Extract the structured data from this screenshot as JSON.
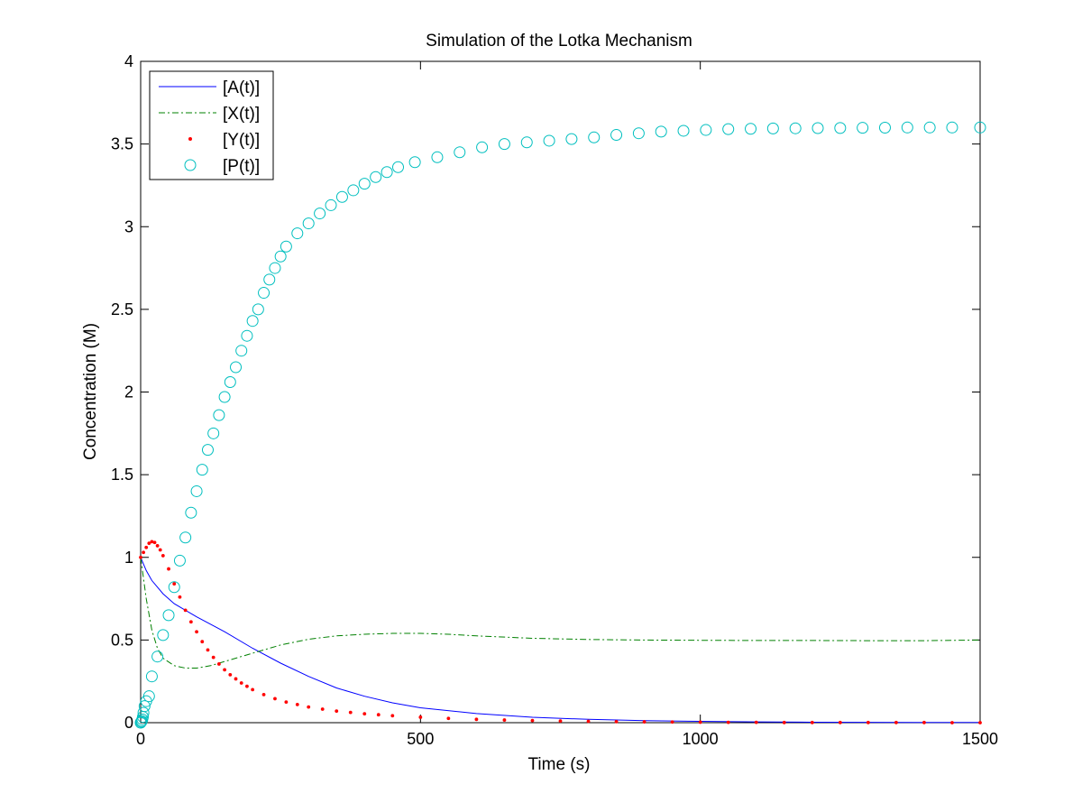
{
  "chart_data": {
    "type": "line",
    "title": "Simulation of the Lotka Mechanism",
    "xlabel": "Time (s)",
    "ylabel": "Concentration (M)",
    "xlim": [
      0,
      1500
    ],
    "ylim": [
      0,
      4
    ],
    "xticks": [
      0,
      500,
      1000,
      1500
    ],
    "yticks": [
      0,
      0.5,
      1,
      1.5,
      2,
      2.5,
      3,
      3.5,
      4
    ],
    "xtick_labels": [
      "0",
      "500",
      "1000",
      "1500"
    ],
    "ytick_labels": [
      "0",
      "0.5",
      "1",
      "1.5",
      "2",
      "2.5",
      "3",
      "3.5",
      "4"
    ],
    "grid": false,
    "legend_position": "top-left",
    "series": [
      {
        "name": "[A(t)]",
        "style": "solid-line",
        "color": "#0000ff",
        "x": [
          0,
          10,
          20,
          40,
          60,
          80,
          100,
          150,
          200,
          250,
          300,
          350,
          400,
          450,
          500,
          600,
          700,
          800,
          900,
          1000,
          1100,
          1200,
          1300,
          1400,
          1500
        ],
        "y": [
          1.0,
          0.92,
          0.86,
          0.78,
          0.72,
          0.68,
          0.64,
          0.55,
          0.45,
          0.36,
          0.28,
          0.21,
          0.16,
          0.12,
          0.09,
          0.055,
          0.033,
          0.02,
          0.012,
          0.008,
          0.005,
          0.003,
          0.002,
          0.001,
          0.001
        ]
      },
      {
        "name": "[X(t)]",
        "style": "dash-dot-line",
        "color": "#008000",
        "x": [
          0,
          10,
          20,
          30,
          40,
          60,
          80,
          100,
          125,
          150,
          200,
          250,
          300,
          350,
          400,
          450,
          500,
          550,
          600,
          700,
          800,
          900,
          1000,
          1100,
          1200,
          1300,
          1400,
          1500
        ],
        "y": [
          1.0,
          0.75,
          0.56,
          0.45,
          0.39,
          0.345,
          0.33,
          0.33,
          0.345,
          0.37,
          0.42,
          0.47,
          0.505,
          0.525,
          0.535,
          0.54,
          0.54,
          0.535,
          0.525,
          0.51,
          0.503,
          0.5,
          0.498,
          0.497,
          0.497,
          0.496,
          0.496,
          0.5
        ]
      },
      {
        "name": "[Y(t)]",
        "style": "dot-markers",
        "color": "#ff0000",
        "x": [
          0,
          5,
          10,
          15,
          20,
          25,
          30,
          35,
          40,
          50,
          60,
          70,
          80,
          90,
          100,
          110,
          120,
          130,
          140,
          150,
          160,
          170,
          180,
          190,
          200,
          220,
          240,
          260,
          280,
          300,
          325,
          350,
          375,
          400,
          425,
          450,
          500,
          550,
          600,
          650,
          700,
          750,
          800,
          850,
          900,
          950,
          1000,
          1050,
          1100,
          1150,
          1200,
          1250,
          1300,
          1350,
          1400,
          1450,
          1500
        ],
        "y": [
          1.0,
          1.03,
          1.06,
          1.085,
          1.095,
          1.09,
          1.07,
          1.045,
          1.01,
          0.93,
          0.84,
          0.76,
          0.68,
          0.61,
          0.55,
          0.49,
          0.44,
          0.395,
          0.355,
          0.32,
          0.29,
          0.265,
          0.24,
          0.22,
          0.2,
          0.17,
          0.145,
          0.125,
          0.11,
          0.095,
          0.082,
          0.07,
          0.062,
          0.054,
          0.048,
          0.042,
          0.033,
          0.026,
          0.02,
          0.016,
          0.013,
          0.01,
          0.008,
          0.006,
          0.005,
          0.004,
          0.003,
          0.002,
          0.002,
          0.001,
          0.001,
          0.001,
          0.001,
          0.001,
          0.001,
          0.0,
          0.0
        ]
      },
      {
        "name": "[P(t)]",
        "style": "circle-markers",
        "color": "#00bfbf",
        "x": [
          0,
          1,
          2,
          3,
          4,
          5,
          7,
          10,
          15,
          20,
          30,
          40,
          50,
          60,
          70,
          80,
          90,
          100,
          110,
          120,
          130,
          140,
          150,
          160,
          170,
          180,
          190,
          200,
          210,
          220,
          230,
          240,
          250,
          260,
          280,
          300,
          320,
          340,
          360,
          380,
          400,
          420,
          440,
          460,
          490,
          530,
          570,
          610,
          650,
          690,
          730,
          770,
          810,
          850,
          890,
          930,
          970,
          1010,
          1050,
          1090,
          1130,
          1170,
          1210,
          1250,
          1290,
          1330,
          1370,
          1410,
          1450,
          1500
        ],
        "y": [
          0.0,
          0.005,
          0.01,
          0.02,
          0.035,
          0.06,
          0.1,
          0.13,
          0.16,
          0.28,
          0.4,
          0.53,
          0.65,
          0.82,
          0.98,
          1.12,
          1.27,
          1.4,
          1.53,
          1.65,
          1.75,
          1.86,
          1.97,
          2.06,
          2.15,
          2.25,
          2.34,
          2.43,
          2.5,
          2.6,
          2.68,
          2.75,
          2.82,
          2.88,
          2.96,
          3.02,
          3.08,
          3.13,
          3.18,
          3.22,
          3.26,
          3.3,
          3.33,
          3.36,
          3.39,
          3.42,
          3.45,
          3.48,
          3.5,
          3.51,
          3.52,
          3.53,
          3.54,
          3.555,
          3.565,
          3.575,
          3.58,
          3.585,
          3.59,
          3.592,
          3.594,
          3.595,
          3.596,
          3.597,
          3.598,
          3.599,
          3.6,
          3.6,
          3.6,
          3.6
        ]
      }
    ]
  }
}
